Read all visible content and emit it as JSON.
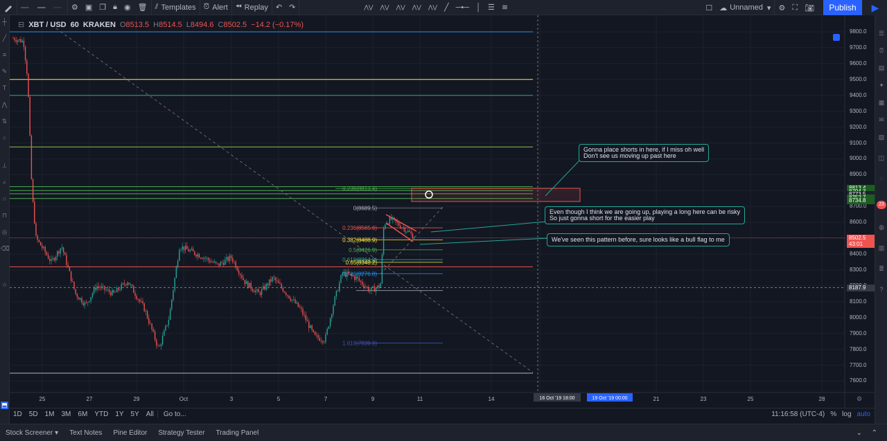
{
  "toolbar": {
    "templates": "Templates",
    "alert": "Alert",
    "replay": "Replay",
    "layout_name": "Unnamed",
    "publish": "Publish"
  },
  "legend": {
    "symbol": "XBT / USD",
    "interval": "60",
    "exchange": "KRAKEN",
    "o_label": "O",
    "o": "8513.5",
    "h_label": "H",
    "h": "8514.5",
    "l_label": "L",
    "l": "8494.6",
    "c_label": "C",
    "c": "8502.5",
    "change": "−14.2 (−0.17%)"
  },
  "price_axis": {
    "labels": [
      "9800.0",
      "9700.0",
      "9600.0",
      "9500.0",
      "9400.0",
      "9300.0",
      "9200.0",
      "9100.0",
      "9000.0",
      "8900.0",
      "8800.0",
      "8700.0",
      "8600.0",
      "8500.0",
      "8400.0",
      "8300.0",
      "8200.0",
      "8100.0",
      "8000.0",
      "7900.0",
      "7800.0",
      "7700.0",
      "7600.0"
    ],
    "tags": [
      {
        "text": "8813.4",
        "color": "#1b5e20"
      },
      {
        "text": "8794.3",
        "color": "#1b5e20"
      },
      {
        "text": "8773.5",
        "color": "#1e222d"
      },
      {
        "text": "8752.7",
        "color": "#1b5e20"
      },
      {
        "text": "8734.8",
        "color": "#1b5e20"
      },
      {
        "text": "8502.5",
        "color": "#ef5350"
      },
      {
        "text": "43:01",
        "color": "#ef5350"
      },
      {
        "text": "8187.9",
        "color": "#363a45"
      }
    ]
  },
  "time_axis": {
    "labels": [
      "25",
      "27",
      "29",
      "Oct",
      "3",
      "5",
      "7",
      "9",
      "11",
      "14",
      "21",
      "23",
      "25",
      "28"
    ],
    "crosshair_1": "16 Oct '19   18:00",
    "crosshair_2": "19 Oct '19   00:00"
  },
  "fib_labels": [
    "0.236(8813.4)",
    "0(8689.5)",
    "0.236(8565.6)",
    "0.382(8488.9)",
    "0.5(8426.9)",
    "0.618(8364.9)",
    "0.65(8348.2)",
    "0.786(8276.8)",
    "1.618(7839.9)"
  ],
  "callouts": {
    "shorts": [
      "Gonna place shorts in here, if I miss oh well",
      "Don't see us moving up past here"
    ],
    "long": [
      "Even though I think we are going up, playing a long here can be risky",
      "So just gonna short for the easier play"
    ],
    "bullflag": [
      "We've seen this pattern before, sure looks like a bull flag to me"
    ]
  },
  "timeframes": [
    "1D",
    "5D",
    "1M",
    "3M",
    "6M",
    "YTD",
    "1Y",
    "5Y",
    "All"
  ],
  "goto": "Go to...",
  "clock": "11:16:58 (UTC-4)",
  "scale_opts": [
    "%",
    "log",
    "auto"
  ],
  "bottom_tabs": [
    "Stock Screener",
    "Text Notes",
    "Pine Editor",
    "Strategy Tester",
    "Trading Panel"
  ],
  "badge": "23",
  "colors": {
    "up": "#26a69a",
    "down": "#ef5350",
    "accent": "#2962ff"
  }
}
